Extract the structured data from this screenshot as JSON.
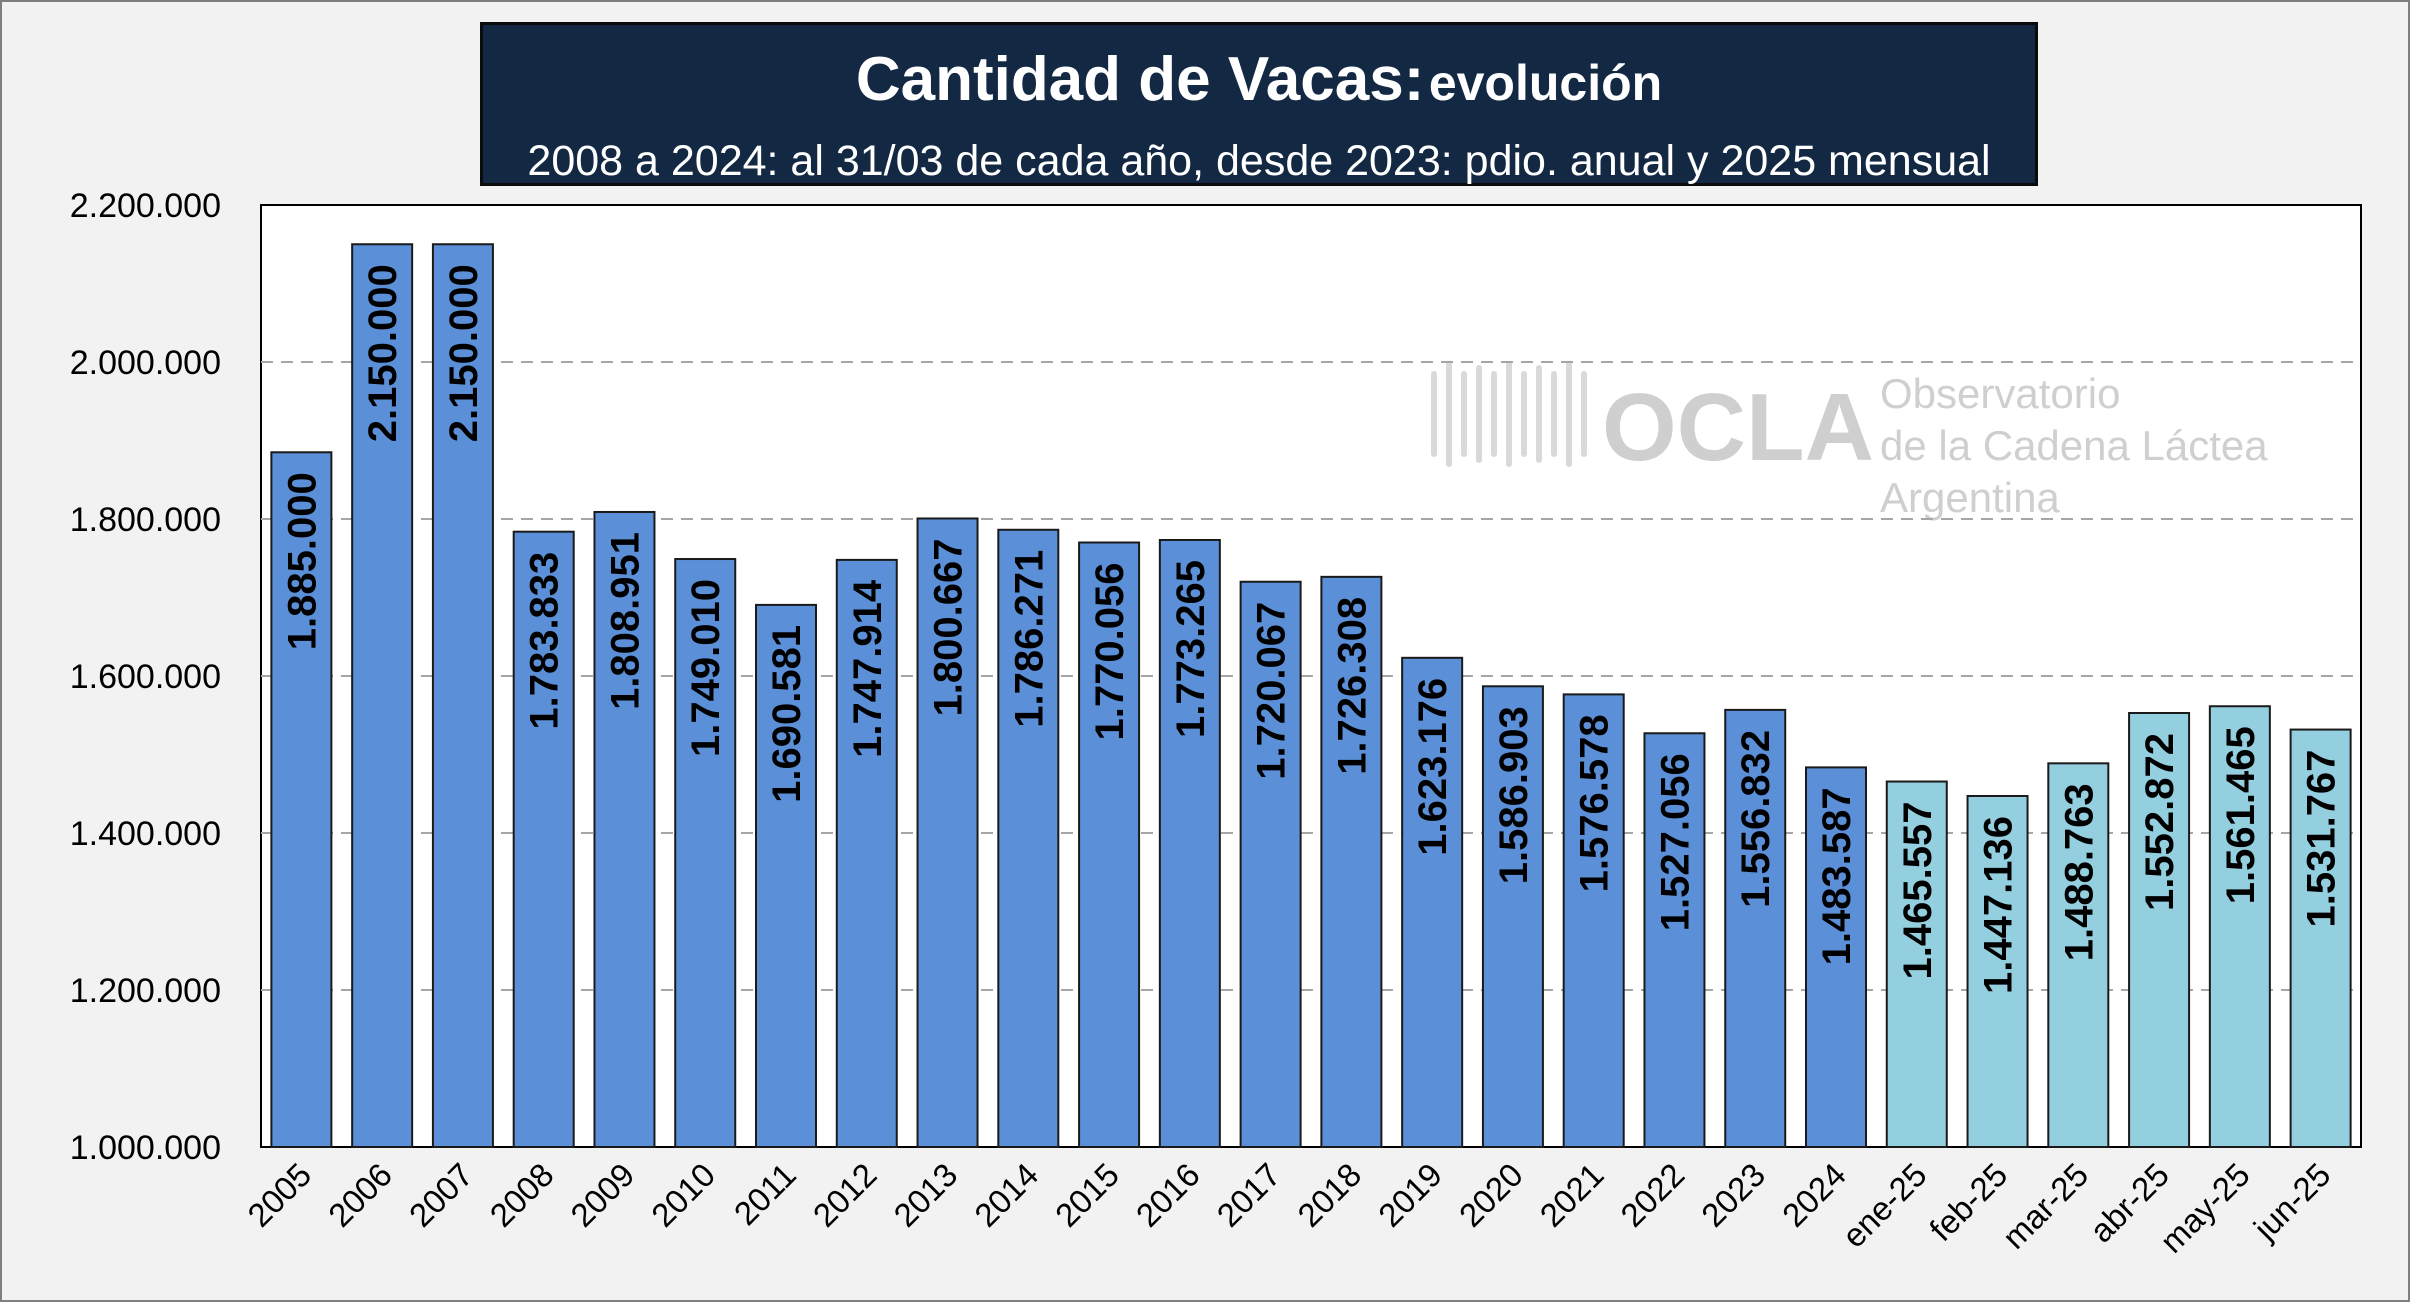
{
  "title": {
    "main": "Cantidad de Vacas:",
    "suffix": "evolución",
    "subtitle": "2008 a 2024: al 31/03 de cada año, desde 2023: pdio. anual y 2025 mensual"
  },
  "watermark": {
    "brand": "OCLA",
    "line1": "Observatorio",
    "line2": "de la Cadena Láctea",
    "line3": "Argentina"
  },
  "colors": {
    "annual_bar": "#5b8fd8",
    "monthly_bar": "#94cfe0",
    "title_bg": "#132843"
  },
  "chart_data": {
    "type": "bar",
    "categories": [
      "2005",
      "2006",
      "2007",
      "2008",
      "2009",
      "2010",
      "2011",
      "2012",
      "2013",
      "2014",
      "2015",
      "2016",
      "2017",
      "2018",
      "2019",
      "2020",
      "2021",
      "2022",
      "2023",
      "2024",
      "ene-25",
      "feb-25",
      "mar-25",
      "abr-25",
      "may-25",
      "jun-25"
    ],
    "values": [
      1885000,
      2150000,
      2150000,
      1783833,
      1808951,
      1749010,
      1690581,
      1747914,
      1800667,
      1786271,
      1770056,
      1773265,
      1720067,
      1726308,
      1623176,
      1586903,
      1576578,
      1527056,
      1556832,
      1483587,
      1465557,
      1447136,
      1488763,
      1552872,
      1561465,
      1531767
    ],
    "value_labels": [
      "1.885.000",
      "2.150.000",
      "2.150.000",
      "1.783.833",
      "1.808.951",
      "1.749.010",
      "1.690.581",
      "1.747.914",
      "1.800.667",
      "1.786.271",
      "1.770.056",
      "1.773.265",
      "1.720.067",
      "1.726.308",
      "1.623.176",
      "1.586.903",
      "1.576.578",
      "1.527.056",
      "1.556.832",
      "1.483.587",
      "1.465.557",
      "1.447.136",
      "1.488.763",
      "1.552.872",
      "1.561.465",
      "1.531.767"
    ],
    "ylim": [
      1000000,
      2200000
    ],
    "yticks": [
      1000000,
      1200000,
      1400000,
      1600000,
      1800000,
      2000000,
      2200000
    ],
    "ytick_labels": [
      "1.000.000",
      "1.200.000",
      "1.400.000",
      "1.600.000",
      "1.800.000",
      "2.000.000",
      "2.200.000"
    ],
    "grid": "horizontal dashed",
    "annual_count": 20
  }
}
